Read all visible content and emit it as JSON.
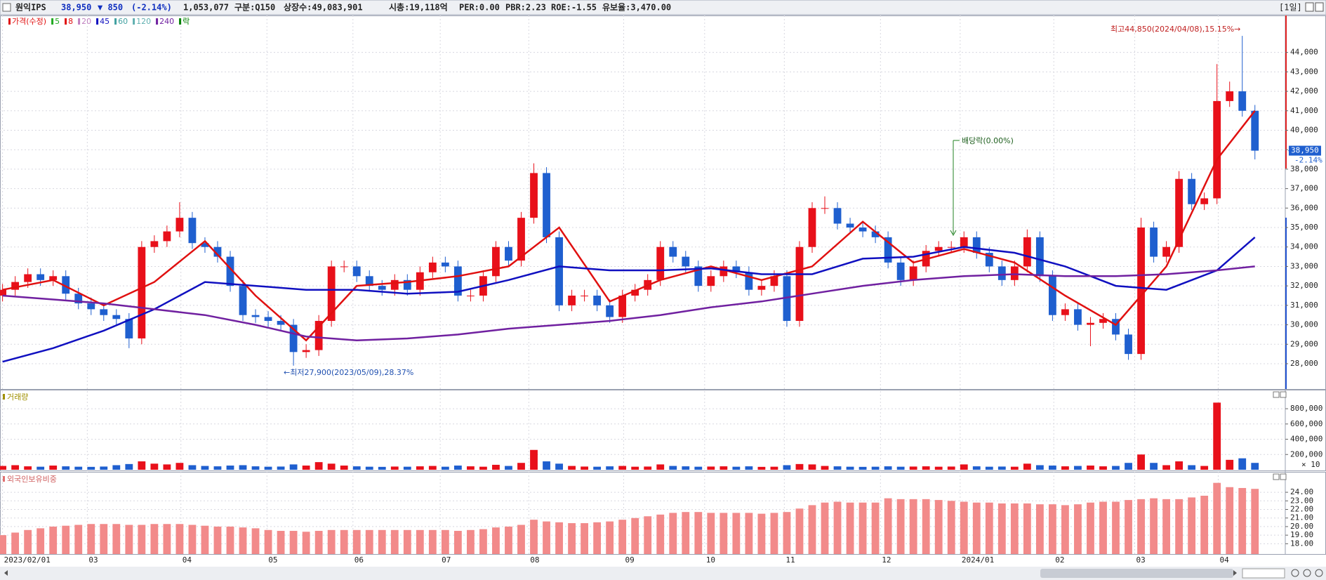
{
  "header": {
    "name": "원익IPS",
    "price": "38,950",
    "change": "▼ 850",
    "change_pct": "(-2.14%)",
    "volume": "1,053,077",
    "division": "구분:Q150",
    "shares": "상장수:49,083,901",
    "market_cap": "시총:19,118억",
    "per": "PER:0.00",
    "pbr": "PBR:2.23",
    "roe": "ROE:-1.55",
    "reserve": "유보율:3,470.00",
    "period": "[1일]"
  },
  "chart_data": [
    {
      "type": "candlestick",
      "up_color": "#e8101a",
      "down_color": "#1f5fcf",
      "xlim": [
        -0.2,
        101.4
      ],
      "ylim": [
        26700,
        45900
      ],
      "yticks": [
        {
          "value": 28000,
          "label": "28,000"
        },
        {
          "value": 29000,
          "label": "29,000"
        },
        {
          "value": 30000,
          "label": "30,000"
        },
        {
          "value": 31000,
          "label": "31,000"
        },
        {
          "value": 32000,
          "label": "32,000"
        },
        {
          "value": 33000,
          "label": "33,000"
        },
        {
          "value": 34000,
          "label": "34,000"
        },
        {
          "value": 35000,
          "label": "35,000"
        },
        {
          "value": 36000,
          "label": "36,000"
        },
        {
          "value": 37000,
          "label": "37,000"
        },
        {
          "value": 38000,
          "label": "38,000"
        },
        {
          "value": 39000,
          "label": "39,000"
        },
        {
          "value": 40000,
          "label": "40,000"
        },
        {
          "value": 41000,
          "label": "41,000"
        },
        {
          "value": 42000,
          "label": "42,000"
        },
        {
          "value": 43000,
          "label": "43,000"
        },
        {
          "value": 44000,
          "label": "44,000"
        }
      ],
      "grid": true,
      "open": [
        31500,
        31800,
        32200,
        32600,
        32300,
        32500,
        31600,
        31100,
        30800,
        30500,
        30300,
        29300,
        34000,
        34300,
        34800,
        35500,
        34200,
        34000,
        33500,
        32000,
        30500,
        30400,
        30200,
        30000,
        28600,
        28700,
        30200,
        33000,
        33000,
        32500,
        32000,
        31800,
        32300,
        31800,
        32700,
        33200,
        33000,
        31500,
        31500,
        32500,
        34000,
        33300,
        35500,
        37800,
        34500,
        31000,
        31500,
        31500,
        31000,
        30400,
        31500,
        31800,
        32300,
        34000,
        33500,
        33000,
        32000,
        32500,
        33000,
        32700,
        31800,
        32000,
        32500,
        30200,
        34000,
        36000,
        36000,
        35200,
        35000,
        34800,
        34500,
        33200,
        32300,
        33000,
        33800,
        34000,
        34000,
        34500,
        33700,
        33000,
        32300,
        33000,
        34500,
        32500,
        30500,
        30800,
        30000,
        30100,
        30300,
        29500,
        28500,
        35000,
        33500,
        34000,
        37500,
        36200,
        36500,
        41500,
        42000,
        41000
      ],
      "high": [
        32100,
        32500,
        32900,
        32900,
        32800,
        32800,
        31900,
        31400,
        31100,
        30800,
        30600,
        34300,
        34600,
        35100,
        36300,
        35800,
        34500,
        34300,
        33800,
        32300,
        30800,
        30700,
        30500,
        30300,
        29000,
        30500,
        33300,
        33300,
        33300,
        32800,
        32300,
        32600,
        32600,
        33000,
        33500,
        33500,
        33300,
        31800,
        32800,
        34300,
        34300,
        35800,
        38300,
        38100,
        34800,
        31800,
        31800,
        31800,
        31300,
        31800,
        32100,
        32600,
        34300,
        34300,
        33800,
        33300,
        32800,
        33300,
        33300,
        33000,
        32300,
        32800,
        32800,
        34300,
        36300,
        36600,
        36300,
        35500,
        35300,
        35100,
        34800,
        33500,
        33300,
        34100,
        34300,
        34300,
        34800,
        34800,
        34000,
        33300,
        33300,
        34900,
        34800,
        32800,
        31100,
        31100,
        30400,
        30600,
        30600,
        29800,
        35500,
        35300,
        34300,
        37900,
        37800,
        36800,
        43400,
        42500,
        44850,
        41300
      ],
      "low": [
        31200,
        31500,
        31900,
        32000,
        32000,
        31300,
        30800,
        30500,
        30200,
        30000,
        28800,
        29000,
        33700,
        34000,
        34500,
        33900,
        33700,
        33200,
        31700,
        30200,
        30100,
        29900,
        29700,
        27900,
        28300,
        28400,
        29900,
        32700,
        32200,
        31700,
        31500,
        31500,
        31500,
        31500,
        32400,
        32700,
        31200,
        31200,
        31200,
        32200,
        33000,
        33000,
        35200,
        34200,
        30700,
        30700,
        31200,
        30700,
        30100,
        30100,
        31200,
        31500,
        32000,
        33200,
        32700,
        31700,
        31700,
        32200,
        32400,
        31500,
        31500,
        31700,
        29900,
        29900,
        33700,
        35700,
        34900,
        34700,
        34500,
        34200,
        32900,
        32000,
        32000,
        32700,
        33500,
        33700,
        33700,
        33400,
        32700,
        32000,
        32000,
        32700,
        32200,
        30200,
        30200,
        29700,
        28900,
        29800,
        29200,
        28200,
        28200,
        33200,
        33200,
        33700,
        35900,
        35900,
        36200,
        41200,
        40700,
        38500
      ],
      "close": [
        31800,
        32200,
        32600,
        32300,
        32500,
        31600,
        31100,
        30800,
        30500,
        30300,
        29300,
        34000,
        34300,
        34800,
        35500,
        34200,
        34000,
        33500,
        32000,
        30500,
        30400,
        30200,
        30000,
        28600,
        28700,
        30200,
        33000,
        33000,
        32500,
        32000,
        31800,
        32300,
        31800,
        32700,
        33200,
        33000,
        31500,
        31500,
        32500,
        34000,
        33300,
        35500,
        37800,
        34500,
        31000,
        31500,
        31500,
        31000,
        30400,
        31500,
        31800,
        32300,
        34000,
        33500,
        33000,
        32000,
        32500,
        33000,
        32700,
        31800,
        32000,
        32500,
        30200,
        34000,
        36000,
        36000,
        35200,
        35000,
        34800,
        34500,
        33200,
        32300,
        33000,
        33800,
        34000,
        34000,
        34500,
        33700,
        33000,
        32300,
        33000,
        34500,
        32500,
        30500,
        30800,
        30000,
        30100,
        30300,
        29500,
        28500,
        35000,
        33500,
        34000,
        37500,
        36200,
        36500,
        41500,
        42000,
        41000,
        38950
      ],
      "ma_x": [
        0,
        4,
        8,
        12,
        16,
        20,
        24,
        28,
        32,
        36,
        40,
        44,
        48,
        52,
        56,
        60,
        64,
        68,
        72,
        76,
        80,
        84,
        88,
        92,
        96,
        99
      ],
      "series": [
        {
          "name": "가격(수정)",
          "color": "#e01010"
        },
        {
          "name": "5",
          "color": "#22aa22"
        },
        {
          "name": "8",
          "color": "#e01010",
          "width": 2.5,
          "values": [
            31800,
            32300,
            31000,
            32200,
            34300,
            31500,
            29200,
            32000,
            32200,
            32500,
            33000,
            35000,
            31200,
            32300,
            33000,
            32300,
            33000,
            35300,
            33200,
            33900,
            33200,
            31500,
            30000,
            33000,
            38500,
            41000
          ]
        },
        {
          "name": "20",
          "color": "#c080c0"
        },
        {
          "name": "45",
          "color": "#1010c0",
          "width": 2.5,
          "values": [
            28100,
            28800,
            29700,
            30800,
            32200,
            32000,
            31800,
            31800,
            31600,
            31700,
            32300,
            33000,
            32800,
            32800,
            32900,
            32600,
            32600,
            33400,
            33500,
            34000,
            33700,
            33000,
            32000,
            31800,
            32800,
            34500
          ]
        },
        {
          "name": "60",
          "color": "#40a0a0"
        },
        {
          "name": "120",
          "color": "#60b0b0"
        },
        {
          "name": "240",
          "color": "#7020a0",
          "width": 2.5,
          "values": [
            31500,
            31300,
            31100,
            30800,
            30500,
            30000,
            29400,
            29200,
            29300,
            29500,
            29800,
            30000,
            30200,
            30500,
            30900,
            31200,
            31600,
            32000,
            32300,
            32500,
            32600,
            32500,
            32500,
            32600,
            32800,
            33000
          ]
        },
        {
          "name": "락",
          "color": "#008000"
        }
      ],
      "last_price": {
        "value": 38950,
        "label": "38,950",
        "change": "-2.14%"
      },
      "annotations": [
        "최고44,850(2024/04/08),15.15%→",
        "←최저27,900(2023/05/09),28.37%",
        "배당락(0.00%)"
      ]
    },
    {
      "type": "bar",
      "title": "거래량",
      "unit": "× 10",
      "xlim": [
        -0.2,
        101.4
      ],
      "ylim": [
        0,
        1040000
      ],
      "yticks": [
        {
          "value": 200000,
          "label": "200,000"
        },
        {
          "value": 400000,
          "label": "400,000"
        },
        {
          "value": 600000,
          "label": "600,000"
        },
        {
          "value": 800000,
          "label": "800,000"
        }
      ],
      "values": [
        50000,
        60000,
        45000,
        40000,
        55000,
        45000,
        40000,
        38000,
        42000,
        60000,
        75000,
        110000,
        80000,
        70000,
        90000,
        60000,
        50000,
        45000,
        55000,
        60000,
        45000,
        40000,
        42000,
        70000,
        55000,
        100000,
        80000,
        55000,
        45000,
        40000,
        38000,
        42000,
        40000,
        45000,
        50000,
        40000,
        55000,
        45000,
        40000,
        65000,
        50000,
        90000,
        260000,
        110000,
        80000,
        50000,
        42000,
        40000,
        45000,
        50000,
        40000,
        42000,
        70000,
        50000,
        45000,
        40000,
        42000,
        45000,
        40000,
        45000,
        38000,
        40000,
        60000,
        75000,
        70000,
        50000,
        45000,
        40000,
        38000,
        40000,
        45000,
        40000,
        42000,
        45000,
        40000,
        42000,
        70000,
        45000,
        40000,
        42000,
        40000,
        80000,
        60000,
        55000,
        45000,
        50000,
        55000,
        45000,
        50000,
        90000,
        200000,
        90000,
        60000,
        110000,
        60000,
        50000,
        880000,
        130000,
        150000,
        90000
      ]
    },
    {
      "type": "bar",
      "title": "외국인보유비중",
      "color": "#f28a8a",
      "xlim": [
        -0.2,
        101.4
      ],
      "ylim": [
        16.8,
        26.3
      ],
      "yticks": [
        {
          "value": 18,
          "label": "18.00"
        },
        {
          "value": 19,
          "label": "19.00"
        },
        {
          "value": 20,
          "label": "20.00"
        },
        {
          "value": 21,
          "label": "21.00"
        },
        {
          "value": 22,
          "label": "22.00"
        },
        {
          "value": 23,
          "label": "23.00"
        },
        {
          "value": 24,
          "label": "24.00"
        }
      ],
      "xticks": [
        {
          "value": 0,
          "label": "2023/02/01"
        },
        {
          "value": 6.7,
          "label": "03"
        },
        {
          "value": 14.1,
          "label": "04"
        },
        {
          "value": 20.9,
          "label": "05"
        },
        {
          "value": 27.7,
          "label": "06"
        },
        {
          "value": 34.6,
          "label": "07"
        },
        {
          "value": 41.6,
          "label": "08"
        },
        {
          "value": 49.1,
          "label": "09"
        },
        {
          "value": 55.5,
          "label": "10"
        },
        {
          "value": 61.8,
          "label": "11"
        },
        {
          "value": 69.4,
          "label": "12"
        },
        {
          "value": 75.7,
          "label": "2024/01"
        },
        {
          "value": 83.1,
          "label": "02"
        },
        {
          "value": 89.5,
          "label": "03"
        },
        {
          "value": 96.1,
          "label": "04"
        }
      ],
      "values": [
        19.0,
        19.3,
        19.6,
        19.8,
        20.0,
        20.1,
        20.2,
        20.3,
        20.3,
        20.3,
        20.2,
        20.2,
        20.3,
        20.3,
        20.3,
        20.2,
        20.1,
        20.0,
        20.0,
        19.9,
        19.8,
        19.6,
        19.5,
        19.5,
        19.4,
        19.5,
        19.6,
        19.6,
        19.6,
        19.6,
        19.6,
        19.6,
        19.6,
        19.6,
        19.6,
        19.6,
        19.5,
        19.6,
        19.7,
        19.9,
        20.0,
        20.2,
        20.8,
        20.6,
        20.5,
        20.4,
        20.4,
        20.5,
        20.6,
        20.8,
        21.0,
        21.2,
        21.4,
        21.6,
        21.7,
        21.7,
        21.6,
        21.6,
        21.6,
        21.6,
        21.5,
        21.6,
        21.7,
        22.1,
        22.5,
        22.8,
        22.9,
        22.8,
        22.8,
        22.8,
        23.3,
        23.2,
        23.2,
        23.2,
        23.1,
        23.0,
        22.9,
        22.8,
        22.8,
        22.7,
        22.7,
        22.7,
        22.6,
        22.6,
        22.5,
        22.6,
        22.8,
        22.9,
        22.9,
        23.1,
        23.2,
        23.3,
        23.2,
        23.2,
        23.4,
        23.6,
        25.1,
        24.6,
        24.5,
        24.4
      ]
    }
  ]
}
